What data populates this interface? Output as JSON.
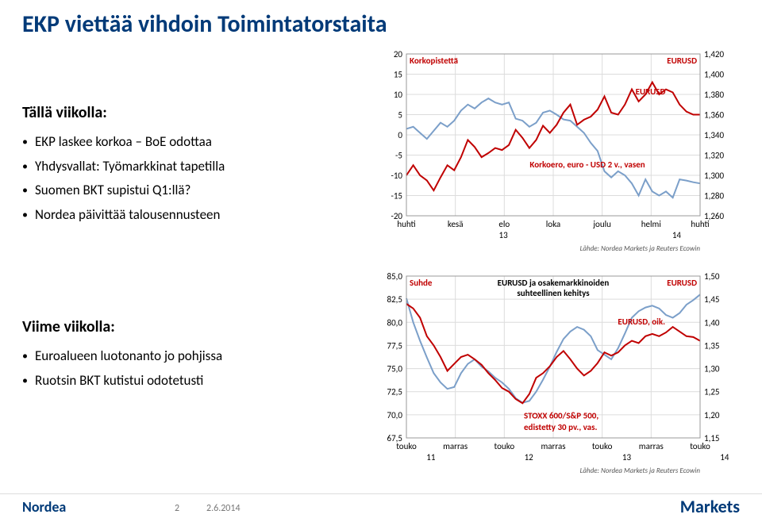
{
  "title": {
    "text": "EKP viettää vihdoin Toimintatorstaita",
    "color": "#003a78"
  },
  "section1": {
    "heading": "Tällä viikolla:",
    "bullets": [
      "EKP laskee korkoa – BoE odottaa",
      "Yhdysvallat: Työmarkkinat tapetilla",
      "Suomen BKT supistui Q1:llä?",
      "Nordea päivittää talousennusteen"
    ]
  },
  "section2": {
    "heading": "Viime viikolla:",
    "bullets": [
      "Euroalueen luotonanto jo pohjissa",
      "Ruotsin BKT kutistui odotetusti"
    ]
  },
  "chart1": {
    "type": "line-dual-axis",
    "left_axis_label": "Korkopistettä",
    "right_axis_label": "EURUSD",
    "left_ticks": [
      -20,
      -15,
      -10,
      -5,
      0,
      5,
      10,
      15,
      20
    ],
    "right_ticks": [
      "1,260",
      "1,280",
      "1,300",
      "1,320",
      "1,340",
      "1,360",
      "1,380",
      "1,400",
      "1,420"
    ],
    "x_labels": [
      "huhti",
      "kesä",
      "elo",
      "loka",
      "joulu",
      "helmi",
      "huhti"
    ],
    "x_sublabels_left": "13",
    "x_sublabels_right": "14",
    "series_a_label": "Korkoero, euro - USD 2 v., vasen",
    "series_b_label": "EURUSD",
    "series_a_color": "#7b9fc9",
    "series_b_color": "#c00000",
    "grid_color": "#dcdcdc",
    "source": "Lähde: Nordea Markets ja Reuters Ecowin",
    "corner_label_color": "#c00000",
    "axis_fontsize": 11,
    "series_a_values": [
      1.5,
      2.0,
      0.5,
      -1.0,
      1.0,
      3.0,
      2.0,
      3.5,
      6.0,
      7.5,
      6.5,
      8.0,
      9.0,
      8.0,
      7.5,
      8.0,
      4.0,
      3.5,
      2.0,
      3.0,
      5.5,
      6.0,
      5.0,
      3.8,
      3.5,
      2.0,
      0.5,
      -2.0,
      -4.0,
      -9.0,
      -10.5,
      -9.0,
      -10.0,
      -12.0,
      -15.0,
      -11.0,
      -14.0,
      -15.0,
      -14.0,
      -15.5,
      -11.0,
      -11.3,
      -11.7,
      -12.0
    ],
    "series_b_values": [
      1300,
      1310,
      1300,
      1295,
      1285,
      1298,
      1310,
      1305,
      1318,
      1335,
      1328,
      1318,
      1322,
      1327,
      1325,
      1330,
      1345,
      1337,
      1327,
      1335,
      1349,
      1342,
      1350,
      1362,
      1370,
      1350,
      1355,
      1358,
      1365,
      1378,
      1362,
      1360,
      1370,
      1385,
      1373,
      1380,
      1392,
      1380,
      1385,
      1382,
      1370,
      1363,
      1360,
      1360
    ],
    "right_min": 1260,
    "right_max": 1420,
    "left_min": -20,
    "left_max": 20
  },
  "chart2": {
    "type": "line-dual-axis",
    "left_axis_label": "Suhde",
    "right_axis_label": "EURUSD",
    "title_inset": "EURUSD ja osakemarkkinoiden\nsuhteellinen kehitys",
    "left_ticks": [
      "67,5",
      "70,0",
      "72,5",
      "75,0",
      "77,5",
      "80,0",
      "82,5",
      "85,0"
    ],
    "right_ticks": [
      "1,15",
      "1,20",
      "1,25",
      "1,30",
      "1,35",
      "1,40",
      "1,45",
      "1,50"
    ],
    "x_labels": [
      "touko",
      "marras",
      "touko",
      "marras",
      "touko",
      "marras",
      "touko"
    ],
    "x_sublabels": [
      "11",
      "12",
      "13",
      "14"
    ],
    "series_a_label": "STOXX 600/S&P 500,\nedistetty 30 pv., vas.",
    "series_b_label": "EURUSD, oik.",
    "series_a_color": "#7b9fc9",
    "series_b_color": "#c00000",
    "grid_color": "#dcdcdc",
    "source": "Lähde: Nordea Markets ja Reuters Ecowin",
    "left_min": 67.5,
    "left_max": 85.0,
    "right_min": 1.15,
    "right_max": 1.5,
    "series_a_values": [
      82.6,
      80.0,
      78.0,
      76.2,
      74.5,
      73.5,
      72.8,
      73.0,
      74.5,
      75.5,
      76.0,
      75.2,
      74.7,
      74.0,
      73.5,
      72.8,
      71.8,
      71.3,
      71.5,
      72.5,
      73.8,
      75.2,
      76.8,
      78.2,
      79.0,
      79.5,
      79.2,
      78.5,
      77.0,
      76.5,
      76.0,
      77.2,
      78.8,
      80.5,
      81.2,
      81.6,
      81.8,
      81.5,
      80.8,
      80.5,
      81.0,
      81.9,
      82.4,
      83.0
    ],
    "series_b_values": [
      1.44,
      1.43,
      1.41,
      1.37,
      1.35,
      1.325,
      1.295,
      1.31,
      1.325,
      1.33,
      1.32,
      1.308,
      1.29,
      1.275,
      1.258,
      1.25,
      1.234,
      1.225,
      1.245,
      1.28,
      1.29,
      1.305,
      1.325,
      1.338,
      1.32,
      1.3,
      1.285,
      1.295,
      1.312,
      1.335,
      1.328,
      1.335,
      1.35,
      1.36,
      1.355,
      1.37,
      1.375,
      1.37,
      1.378,
      1.39,
      1.38,
      1.37,
      1.368,
      1.36
    ]
  },
  "footer": {
    "logo_left": "Nordea",
    "logo_right": "Markets",
    "page": "2",
    "date": "2.6.2014",
    "brand_color": "#003a78"
  }
}
